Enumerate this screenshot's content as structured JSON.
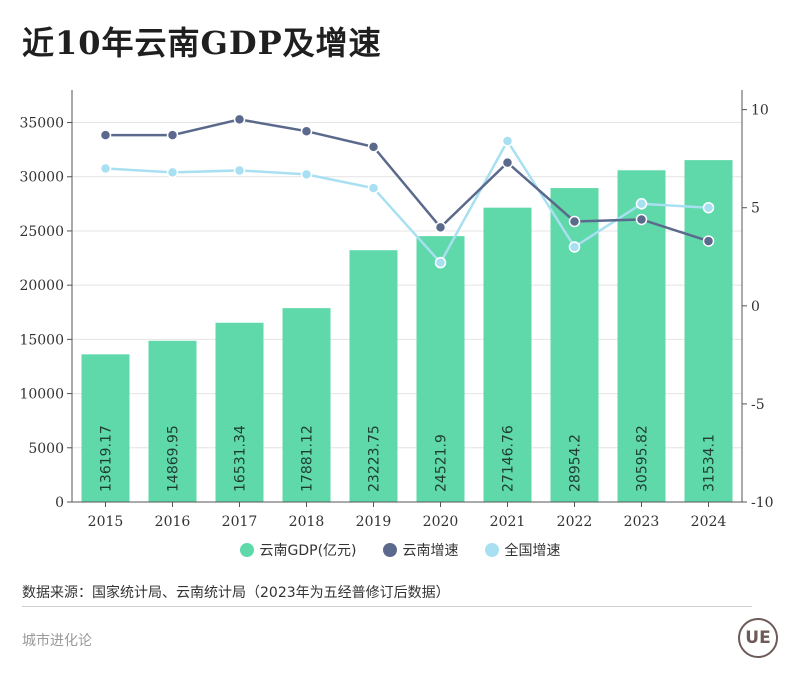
{
  "title": "近10年云南GDP及增速",
  "chart_data": {
    "type": "bar",
    "categories": [
      "2015",
      "2016",
      "2017",
      "2018",
      "2019",
      "2020",
      "2021",
      "2022",
      "2023",
      "2024"
    ],
    "series": [
      {
        "name": "云南GDP(亿元)",
        "kind": "bar",
        "axis": "left",
        "color": "#5fd8aa",
        "values": [
          13619.17,
          14869.95,
          16531.34,
          17881.12,
          23223.75,
          24521.9,
          27146.76,
          28954.2,
          30595.82,
          31534.1
        ],
        "labels": [
          "13619.17",
          "14869.95",
          "16531.34",
          "17881.12",
          "23223.75",
          "24521.9",
          "27146.76",
          "28954.2",
          "30595.82",
          "31534.1"
        ]
      },
      {
        "name": "云南增速",
        "kind": "line",
        "axis": "right",
        "color": "#5b6a8c",
        "values": [
          8.7,
          8.7,
          9.5,
          8.9,
          8.1,
          4.0,
          7.3,
          4.3,
          4.4,
          3.3
        ]
      },
      {
        "name": "全国增速",
        "kind": "line",
        "axis": "right",
        "color": "#a8e0f2",
        "values": [
          7.0,
          6.8,
          6.9,
          6.7,
          6.0,
          2.2,
          8.4,
          3.0,
          5.2,
          5.0
        ]
      }
    ],
    "ylim_left": [
      0,
      38000
    ],
    "yticks_left": [
      0,
      5000,
      10000,
      15000,
      20000,
      25000,
      30000,
      35000
    ],
    "ylim_right": [
      -10,
      11
    ],
    "yticks_right": [
      -10,
      -5,
      0,
      5,
      10
    ],
    "grid": true,
    "legend": "bottom-center"
  },
  "source": "数据来源：国家统计局、云南统计局（2023年为五经普修订后数据）",
  "footer": "城市进化论",
  "logo_text": "UE"
}
